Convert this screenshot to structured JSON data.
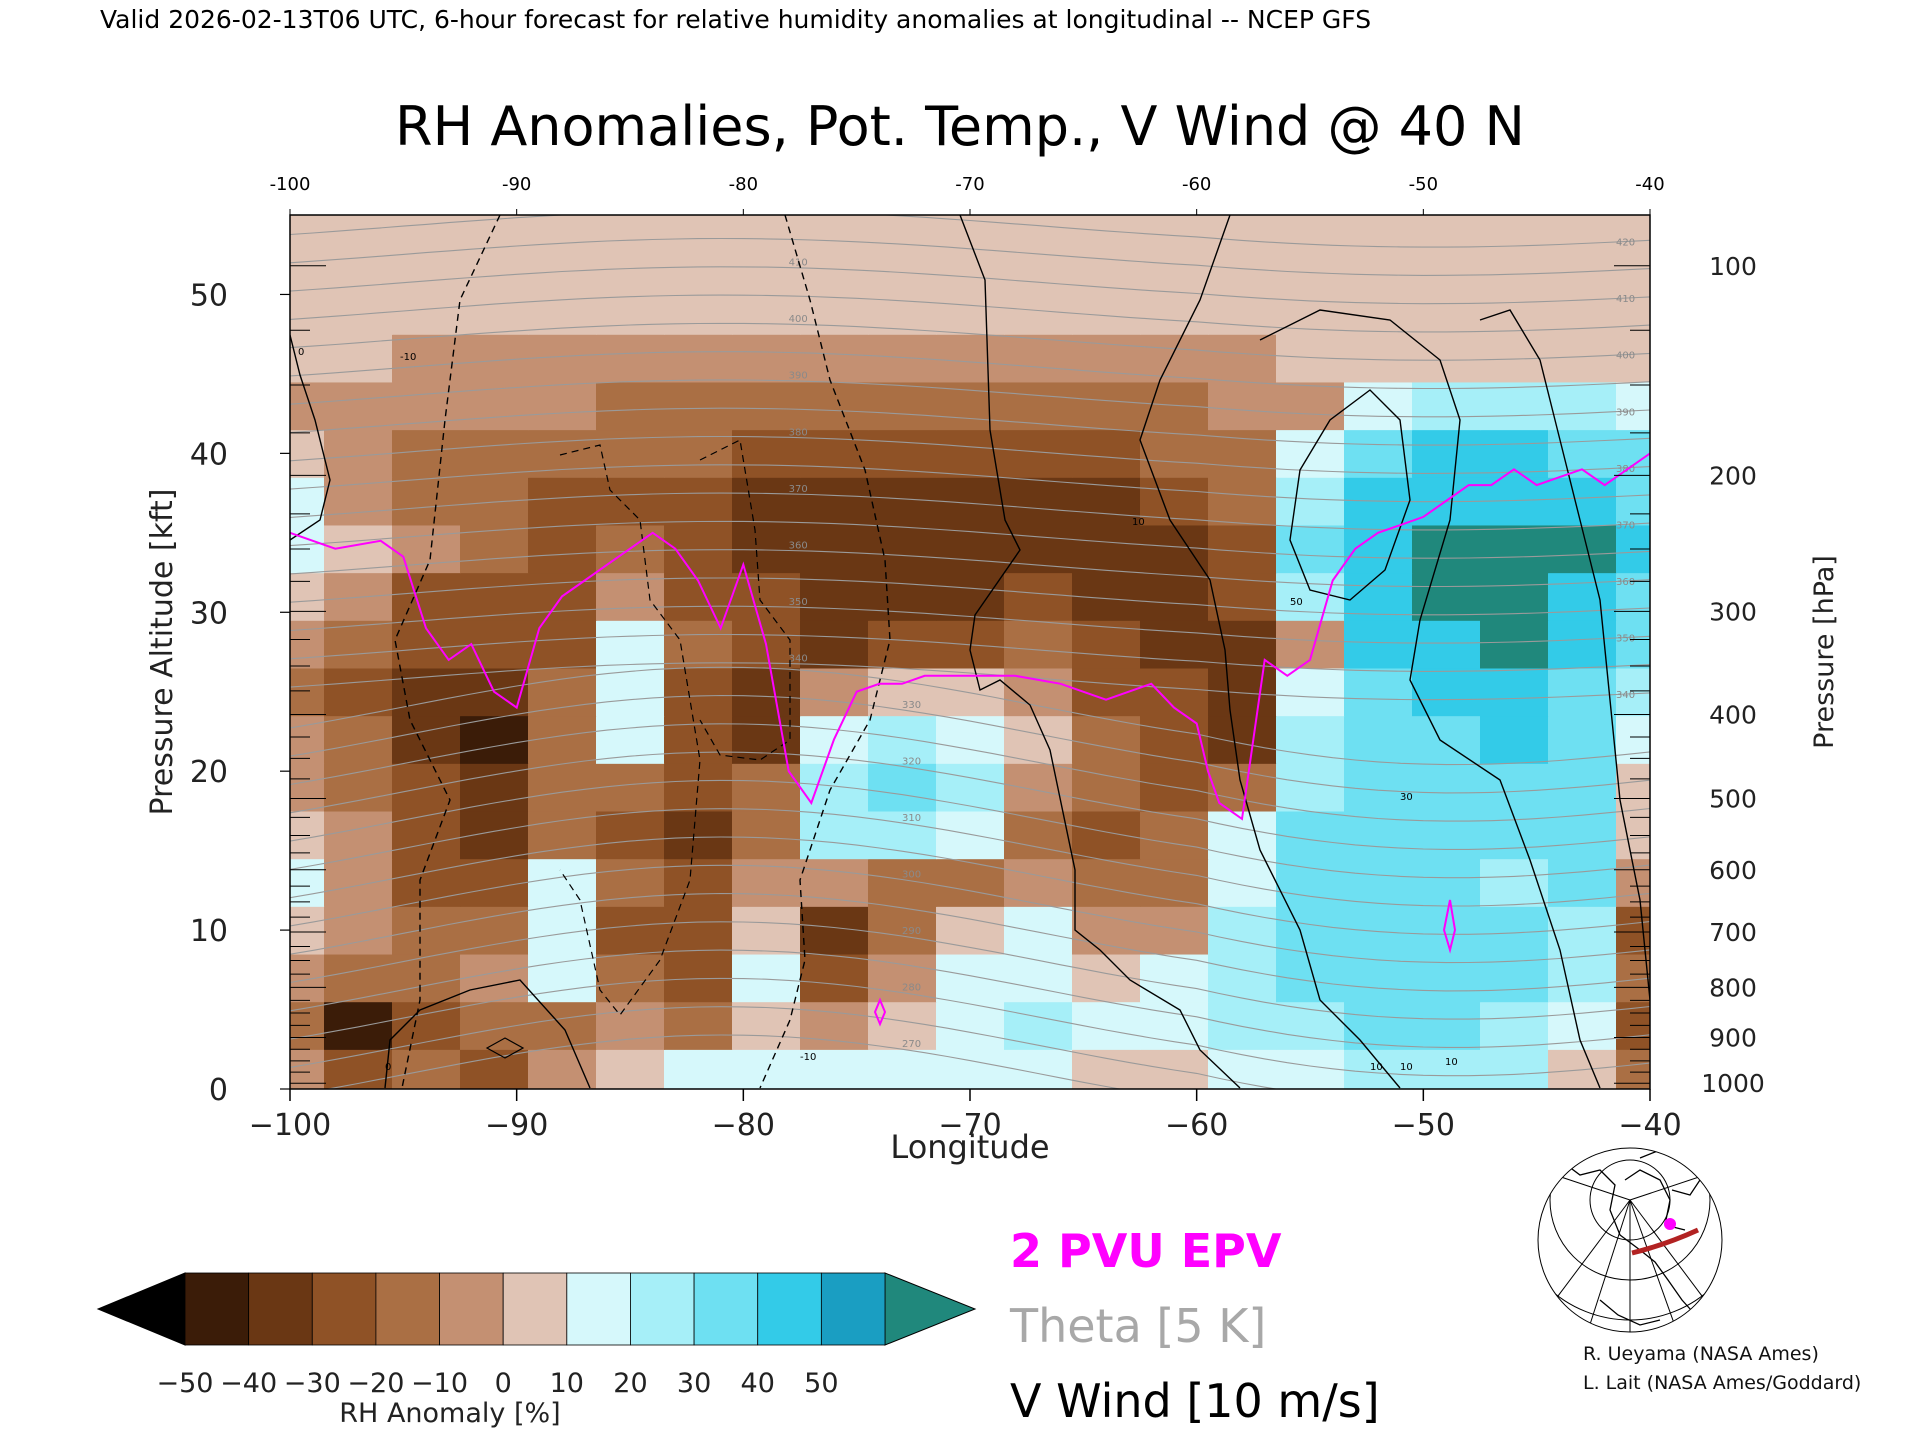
{
  "header": {
    "valid_line": "Valid 2026-02-13T06 UTC, 6-hour forecast for relative humidity anomalies at longitudinal -- NCEP GFS"
  },
  "chart_data": {
    "type": "heatmap",
    "title": "RH Anomalies, Pot. Temp., V Wind @ 40 N",
    "xlabel": "Longitude",
    "ylabel_left": "Pressure Altitude [kft]",
    "ylabel_right": "Pressure [hPa]",
    "xlim": [
      -100,
      -40
    ],
    "ylim": [
      0,
      55
    ],
    "x_ticks": [
      -100,
      -90,
      -80,
      -70,
      -60,
      -50,
      -40
    ],
    "x_tick_labels": [
      "−100",
      "−90",
      "−80",
      "−70",
      "−60",
      "−50",
      "−40"
    ],
    "top_tick_labels": [
      "-100",
      "-90",
      "-80",
      "-70",
      "-60",
      "-50",
      "-40"
    ],
    "y_ticks": [
      0,
      10,
      20,
      30,
      40,
      50
    ],
    "pressure_ticks": [
      {
        "hPa": 100,
        "label": "100"
      },
      {
        "hPa": 200,
        "label": "200"
      },
      {
        "hPa": 300,
        "label": "300"
      },
      {
        "hPa": 400,
        "label": "400"
      },
      {
        "hPa": 500,
        "label": "500"
      },
      {
        "hPa": 600,
        "label": "600"
      },
      {
        "hPa": 700,
        "label": "700"
      },
      {
        "hPa": 800,
        "label": "800"
      },
      {
        "hPa": 900,
        "label": "900"
      },
      {
        "hPa": 1000,
        "label": "1000"
      }
    ],
    "rh_anomaly_field": {
      "x": [
        -100,
        -97,
        -94,
        -91,
        -88,
        -85,
        -82,
        -79,
        -76,
        -73,
        -70,
        -67,
        -64,
        -61,
        -58,
        -55,
        -52,
        -49,
        -46,
        -43,
        -40
      ],
      "y_kft": [
        1,
        4,
        7,
        10,
        13,
        16,
        19,
        22,
        25,
        28,
        31,
        34,
        37,
        40,
        43,
        46,
        49,
        52,
        55
      ],
      "values": [
        [
          -10,
          -30,
          -20,
          -25,
          -10,
          5,
          10,
          10,
          15,
          15,
          10,
          10,
          5,
          5,
          10,
          15,
          20,
          25,
          20,
          5,
          -20
        ],
        [
          -20,
          -45,
          -25,
          -20,
          -15,
          -10,
          -15,
          5,
          -10,
          5,
          15,
          20,
          10,
          15,
          20,
          25,
          30,
          30,
          25,
          15,
          -25
        ],
        [
          -5,
          -20,
          -15,
          -10,
          10,
          -20,
          -25,
          10,
          -25,
          -10,
          10,
          15,
          5,
          10,
          25,
          30,
          35,
          35,
          30,
          20,
          -15
        ],
        [
          5,
          -10,
          -20,
          -15,
          15,
          -25,
          -30,
          5,
          -35,
          -15,
          5,
          10,
          -5,
          -5,
          20,
          35,
          35,
          30,
          30,
          25,
          -30
        ],
        [
          10,
          -5,
          -25,
          -30,
          10,
          -20,
          -30,
          -10,
          -10,
          -20,
          -15,
          -10,
          -20,
          -15,
          15,
          30,
          30,
          35,
          25,
          30,
          -10
        ],
        [
          5,
          -10,
          -30,
          -35,
          -15,
          -25,
          -35,
          -15,
          20,
          25,
          10,
          -15,
          -25,
          -20,
          10,
          30,
          35,
          30,
          35,
          30,
          0
        ],
        [
          -5,
          -15,
          -30,
          -40,
          -20,
          -20,
          -30,
          -20,
          25,
          30,
          20,
          -5,
          -20,
          -25,
          -20,
          25,
          30,
          35,
          30,
          35,
          5
        ],
        [
          -10,
          -20,
          -35,
          -45,
          -15,
          10,
          -30,
          -40,
          15,
          25,
          15,
          5,
          -15,
          -25,
          -35,
          20,
          35,
          35,
          40,
          30,
          10
        ],
        [
          -15,
          -25,
          -35,
          -40,
          -20,
          15,
          -25,
          -35,
          -10,
          5,
          5,
          -5,
          -25,
          -30,
          -40,
          10,
          35,
          40,
          40,
          35,
          20
        ],
        [
          -5,
          -20,
          -30,
          -25,
          -25,
          10,
          -20,
          -30,
          -35,
          -30,
          -25,
          -20,
          -30,
          -35,
          -35,
          -10,
          40,
          45,
          50,
          45,
          30
        ],
        [
          5,
          -10,
          -25,
          -25,
          -30,
          -10,
          -25,
          -30,
          -35,
          -35,
          -35,
          -30,
          -35,
          -40,
          -30,
          20,
          45,
          50,
          50,
          45,
          35
        ],
        [
          15,
          5,
          -10,
          -15,
          -25,
          -20,
          -30,
          -35,
          -40,
          -40,
          -40,
          -40,
          -40,
          -35,
          -25,
          35,
          45,
          50,
          50,
          50,
          40
        ],
        [
          10,
          -5,
          -15,
          -20,
          -25,
          -25,
          -30,
          -35,
          -35,
          -35,
          -35,
          -35,
          -35,
          -30,
          -20,
          20,
          40,
          45,
          45,
          40,
          35
        ],
        [
          0,
          -10,
          -15,
          -20,
          -20,
          -20,
          -20,
          -25,
          -25,
          -25,
          -25,
          -25,
          -25,
          -20,
          -15,
          10,
          30,
          40,
          40,
          35,
          30
        ],
        [
          -5,
          -5,
          -10,
          -10,
          -10,
          -15,
          -15,
          -15,
          -15,
          -15,
          -15,
          -15,
          -15,
          -15,
          -10,
          -5,
          10,
          20,
          25,
          20,
          15
        ],
        [
          0,
          0,
          -5,
          -5,
          -5,
          -5,
          -5,
          -5,
          -5,
          -5,
          -5,
          -5,
          -5,
          -5,
          -5,
          0,
          0,
          5,
          5,
          5,
          5
        ],
        [
          0,
          0,
          0,
          0,
          0,
          0,
          0,
          0,
          0,
          0,
          0,
          0,
          0,
          0,
          0,
          0,
          0,
          0,
          0,
          0,
          0
        ],
        [
          5,
          0,
          0,
          0,
          0,
          0,
          0,
          0,
          0,
          0,
          0,
          0,
          0,
          0,
          0,
          0,
          0,
          0,
          0,
          0,
          0
        ],
        [
          5,
          5,
          0,
          0,
          0,
          0,
          0,
          0,
          0,
          0,
          0,
          0,
          0,
          0,
          0,
          0,
          0,
          0,
          0,
          0,
          0
        ]
      ]
    },
    "theta_contours": {
      "levels": [
        270,
        275,
        280,
        285,
        290,
        295,
        300,
        305,
        310,
        315,
        320,
        325,
        330,
        335,
        340,
        345,
        350,
        355,
        360,
        365,
        370,
        375,
        380,
        385,
        390,
        395,
        400,
        405,
        410,
        415,
        420
      ],
      "labels": [
        "270",
        "280",
        "290",
        "300",
        "310",
        "320",
        "330",
        "340",
        "350",
        "360",
        "370",
        "380",
        "390",
        "400",
        "410",
        "420"
      ]
    },
    "epv_2pvu": {
      "x": [
        -100,
        -98,
        -96,
        -95,
        -94,
        -93,
        -92,
        -91,
        -90,
        -89,
        -88,
        -87,
        -86,
        -85,
        -84,
        -83,
        -82,
        -81,
        -80,
        -79,
        -78,
        -77,
        -76,
        -75,
        -74,
        -73,
        -72,
        -70,
        -68,
        -66,
        -64,
        -62,
        -61,
        -60,
        -59.5,
        -59,
        -58,
        -57,
        -56,
        -55,
        -54,
        -53,
        -52,
        -51,
        -50,
        -49,
        -48,
        -47,
        -46,
        -45,
        -44,
        -43,
        -42,
        -41,
        -40
      ],
      "kft": [
        35,
        34,
        34.5,
        33.5,
        29,
        27,
        28,
        25,
        24,
        29,
        31,
        32,
        33,
        34,
        35,
        34,
        32,
        29,
        33,
        28,
        20,
        18,
        22,
        25,
        25.5,
        25.5,
        26,
        26,
        26,
        25.5,
        24.5,
        25.5,
        24,
        23,
        20,
        18,
        17,
        27,
        26,
        27,
        32,
        34,
        35,
        35.5,
        36,
        37,
        38,
        38,
        39,
        38,
        38.5,
        39,
        38,
        39,
        40
      ]
    },
    "v_wind_contours": {
      "labels": [
        "-10",
        "-10",
        "0",
        "0",
        "10",
        "10",
        "30",
        "50",
        "10",
        "10"
      ]
    },
    "colorbar": {
      "label": "RH Anomaly [%]",
      "ticks": [
        "−50",
        "−40",
        "−30",
        "−20",
        "−10",
        "0",
        "10",
        "20",
        "30",
        "40",
        "50"
      ],
      "colors": [
        "#3b1c08",
        "#6a3714",
        "#8f5226",
        "#aa6f44",
        "#c49072",
        "#e0c4b5",
        "#d6f8fb",
        "#a6eff8",
        "#6ee0f2",
        "#33cbe8",
        "#1a9ec2"
      ],
      "under_color": "#000000",
      "over_color": "#20887c"
    },
    "legend": {
      "epv": "2 PVU EPV",
      "theta": "Theta [5 K]",
      "wind": "V Wind [10 m/s]",
      "epv_color": "#ff00ff",
      "theta_color": "#a8a8a8",
      "wind_color": "#000000"
    }
  },
  "inset_map": {
    "track_color": "#b22222",
    "marker_color": "#ff00ff"
  },
  "credits": {
    "line1": "R. Ueyama (NASA Ames)",
    "line2": "L. Lait (NASA Ames/Goddard)"
  }
}
